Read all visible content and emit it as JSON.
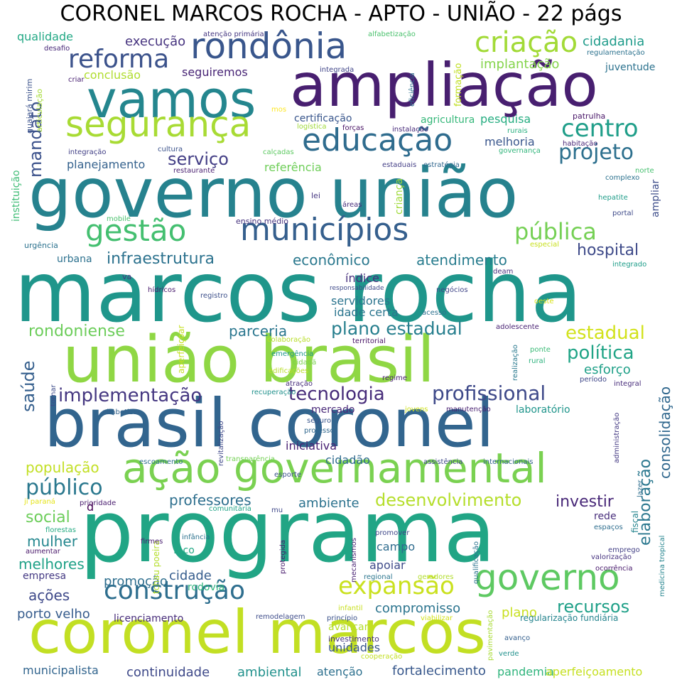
{
  "title": "CORONEL MARCOS ROCHA - APTO - UNIÃO - 22 págs",
  "words": [
    {
      "text": "programa",
      "color": "#21a585"
    },
    {
      "text": "marcos rocha",
      "color": "#1f968b"
    },
    {
      "text": "brasil coronel",
      "color": "#32658e"
    },
    {
      "text": "coronel marcos",
      "color": "#c2df23"
    },
    {
      "text": "governo união",
      "color": "#26828e"
    },
    {
      "text": "união brasil",
      "color": "#8fd744"
    },
    {
      "text": "ampliação",
      "color": "#481f70"
    },
    {
      "text": "vamos",
      "color": "#24868e"
    },
    {
      "text": "ação governamental",
      "color": "#7ad151"
    },
    {
      "text": "segurança",
      "color": "#a8db34"
    },
    {
      "text": "rondônia",
      "color": "#39568c"
    },
    {
      "text": "municípios",
      "color": "#355f8d"
    },
    {
      "text": "educação",
      "color": "#2f6c8e"
    },
    {
      "text": "governo",
      "color": "#5ec962"
    },
    {
      "text": "construção",
      "color": "#2e6e8e"
    },
    {
      "text": "expansão",
      "color": "#cae11f"
    },
    {
      "text": "gestão",
      "color": "#44bf70"
    },
    {
      "text": "criação",
      "color": "#a2da37"
    },
    {
      "text": "reforma",
      "color": "#3b528b"
    },
    {
      "text": "centro",
      "color": "#1f9e89"
    },
    {
      "text": "projeto",
      "color": "#2d708e"
    },
    {
      "text": "pública",
      "color": "#75d054"
    },
    {
      "text": "público",
      "color": "#2a788e"
    },
    {
      "text": "profissional",
      "color": "#3e4989"
    },
    {
      "text": "implementação",
      "color": "#453781"
    },
    {
      "text": "tecnologia",
      "color": "#472c7a"
    },
    {
      "text": "desenvolvimento",
      "color": "#b5de2b"
    },
    {
      "text": "infraestrutura",
      "color": "#2c728e"
    },
    {
      "text": "plano estadual",
      "color": "#277f8e"
    },
    {
      "text": "estadual",
      "color": "#d2e21b"
    },
    {
      "text": "política",
      "color": "#20a486"
    },
    {
      "text": "hospital",
      "color": "#3e4a89"
    },
    {
      "text": "rondoniense",
      "color": "#6ccd5a"
    },
    {
      "text": "recursos",
      "color": "#1fa088"
    },
    {
      "text": "mandato",
      "color": "#3b518b"
    },
    {
      "text": "saúde",
      "color": "#355f8d"
    },
    {
      "text": "serviço",
      "color": "#433e85"
    },
    {
      "text": "parceria",
      "color": "#2a768e"
    },
    {
      "text": "econômico",
      "color": "#2a788e"
    },
    {
      "text": "atendimento",
      "color": "#287c8e"
    },
    {
      "text": "população",
      "color": "#c2df23"
    },
    {
      "text": "social",
      "color": "#6ccd5a"
    },
    {
      "text": "mulher",
      "color": "#24878e"
    },
    {
      "text": "melhores",
      "color": "#1fa187"
    },
    {
      "text": "professores",
      "color": "#2e6f8e"
    },
    {
      "text": "ambiente",
      "color": "#2c728e"
    },
    {
      "text": "investir",
      "color": "#482878"
    },
    {
      "text": "elaboração",
      "color": "#2a778e"
    },
    {
      "text": "consolidação",
      "color": "#31688e"
    },
    {
      "text": "ações",
      "color": "#3e4989"
    },
    {
      "text": "promoção",
      "color": "#2e6e8e"
    },
    {
      "text": "cidade",
      "color": "#365d8d"
    },
    {
      "text": "porto velho",
      "color": "#365c8d"
    },
    {
      "text": "compromisso",
      "color": "#2b748e"
    },
    {
      "text": "plano",
      "color": "#c8e020"
    },
    {
      "text": "continuidade",
      "color": "#3e4989"
    },
    {
      "text": "ambiental",
      "color": "#21918c"
    },
    {
      "text": "fortalecimento",
      "color": "#38588c"
    },
    {
      "text": "esforço",
      "color": "#1fa088"
    },
    {
      "text": "execução",
      "color": "#46337f"
    },
    {
      "text": "implantação",
      "color": "#84d44b"
    },
    {
      "text": "cidadania",
      "color": "#1e9b8a"
    },
    {
      "text": "melhoria",
      "color": "#39568c"
    },
    {
      "text": "pesquisa",
      "color": "#26ad81"
    },
    {
      "text": "conclusão",
      "color": "#b0dd2f"
    },
    {
      "text": "qualidade",
      "color": "#22a884"
    },
    {
      "text": "seguiremos",
      "color": "#482576"
    },
    {
      "text": "planejamento",
      "color": "#34618d"
    },
    {
      "text": "referência",
      "color": "#6ece58"
    },
    {
      "text": "índice",
      "color": "#46307e"
    },
    {
      "text": "servidores",
      "color": "#2b748e"
    },
    {
      "text": "idade certa",
      "color": "#2b758e"
    },
    {
      "text": "campo",
      "color": "#2f6c8e"
    },
    {
      "text": "apoiar",
      "color": "#3e4a89"
    },
    {
      "text": "iniciativa",
      "color": "#482173"
    },
    {
      "text": "cidadão",
      "color": "#2f6b8e"
    },
    {
      "text": "unidades",
      "color": "#39568c"
    },
    {
      "text": "atenção",
      "color": "#2d708e"
    },
    {
      "text": "pandemia",
      "color": "#2fb47c"
    },
    {
      "text": "aperfeiçoamento",
      "color": "#c5e021"
    },
    {
      "text": "municipalista",
      "color": "#32658e"
    },
    {
      "text": "licenciamento",
      "color": "#472c7a"
    },
    {
      "text": "rodovia",
      "color": "#2eb37c"
    },
    {
      "text": "empresa",
      "color": "#443983"
    },
    {
      "text": "mercado",
      "color": "#482878"
    },
    {
      "text": "agricultura",
      "color": "#35b779"
    },
    {
      "text": "certificação",
      "color": "#39568c"
    },
    {
      "text": "juventude",
      "color": "#2c728e"
    },
    {
      "text": "rede",
      "color": "#472d7b"
    },
    {
      "text": "laboratório",
      "color": "#1f958b"
    },
    {
      "text": "regularização fundiária",
      "color": "#25848e"
    },
    {
      "text": "avançar",
      "color": "#b5de2b"
    },
    {
      "text": "investimento",
      "color": "#46327e"
    },
    {
      "text": "urbana",
      "color": "#2c718e"
    },
    {
      "text": "ensino médio",
      "color": "#46327e"
    },
    {
      "text": "ampliar",
      "color": "#3d4d8a"
    },
    {
      "text": "portal",
      "color": "#3e4a89"
    },
    {
      "text": "lei",
      "color": "#453781"
    },
    {
      "text": "áreas",
      "color": "#472d7b"
    },
    {
      "text": "criança",
      "color": "#9fda3a"
    },
    {
      "text": "formação",
      "color": "#c0df25"
    },
    {
      "text": "instituição",
      "color": "#3dbc74"
    },
    {
      "text": "guajará mirim",
      "color": "#3b528b"
    },
    {
      "text": "articulação",
      "color": "#a5db36"
    },
    {
      "text": "mos",
      "color": "#fde725"
    },
    {
      "text": "criar",
      "color": "#482071"
    },
    {
      "text": "integrada",
      "color": "#404588"
    },
    {
      "text": "eficiência",
      "color": "#2d708e"
    },
    {
      "text": "patrulha",
      "color": "#481668"
    },
    {
      "text": "logística",
      "color": "#a0da39"
    },
    {
      "text": "forças",
      "color": "#471063"
    },
    {
      "text": "instalação",
      "color": "#472a7a"
    },
    {
      "text": "rurais",
      "color": "#29af7f"
    },
    {
      "text": "integração",
      "color": "#424086"
    },
    {
      "text": "cultura",
      "color": "#3b528b"
    },
    {
      "text": "calçadas",
      "color": "#5ec962"
    },
    {
      "text": "estaduais",
      "color": "#433e85"
    },
    {
      "text": "estratégia",
      "color": "#31678e"
    },
    {
      "text": "governança",
      "color": "#31b57b"
    },
    {
      "text": "habitação",
      "color": "#482677"
    },
    {
      "text": "complexo",
      "color": "#2c728e"
    },
    {
      "text": "norte",
      "color": "#46c06f"
    },
    {
      "text": "hepatite",
      "color": "#1e9c89"
    },
    {
      "text": "restaurante",
      "color": "#481d6f"
    },
    {
      "text": "mobile",
      "color": "#4ac16d"
    },
    {
      "text": "urgência",
      "color": "#2c728e"
    },
    {
      "text": "especial",
      "color": "#c8e020"
    },
    {
      "text": "integrado",
      "color": "#1e9d89"
    },
    {
      "text": "va",
      "color": "#453581"
    },
    {
      "text": "deam",
      "color": "#472f7d"
    },
    {
      "text": "hídricos",
      "color": "#481b6d"
    },
    {
      "text": "registro",
      "color": "#3c4f8a"
    },
    {
      "text": "responsabilidade",
      "color": "#3e4989"
    },
    {
      "text": "negócios",
      "color": "#404688"
    },
    {
      "text": "acesso",
      "color": "#2c718e"
    },
    {
      "text": "oeste",
      "color": "#d8e219"
    },
    {
      "text": "adolescente",
      "color": "#482173"
    },
    {
      "text": "aperfeiçoar",
      "color": "#c5e021"
    },
    {
      "text": "colaboração",
      "color": "#b8de29"
    },
    {
      "text": "territorial",
      "color": "#471164"
    },
    {
      "text": "realização",
      "color": "#29798e"
    },
    {
      "text": "ponte",
      "color": "#3aba76"
    },
    {
      "text": "rural",
      "color": "#2db27d"
    },
    {
      "text": "emergência",
      "color": "#1f988b"
    },
    {
      "text": "cidadã",
      "color": "#7ad151"
    },
    {
      "text": "edificações",
      "color": "#b8de29"
    },
    {
      "text": "regime",
      "color": "#482071"
    },
    {
      "text": "período",
      "color": "#3f4788"
    },
    {
      "text": "integral",
      "color": "#472c7a"
    },
    {
      "text": "tornar",
      "color": "#3e4c8a"
    },
    {
      "text": "atração",
      "color": "#472d7b"
    },
    {
      "text": "recuperação",
      "color": "#21918c"
    },
    {
      "text": "alfabetizar",
      "color": "#33638d"
    },
    {
      "text": "jovens",
      "color": "#cde11d"
    },
    {
      "text": "manutenção",
      "color": "#481f70"
    },
    {
      "text": "administração",
      "color": "#443a83"
    },
    {
      "text": "revitalização",
      "color": "#3f4889"
    },
    {
      "text": "seguro",
      "color": "#39568c"
    },
    {
      "text": "professor",
      "color": "#31688e"
    },
    {
      "text": "escoamento",
      "color": "#2d708e"
    },
    {
      "text": "transparência",
      "color": "#74d055"
    },
    {
      "text": "assistência",
      "color": "#3e4989"
    },
    {
      "text": "internacionais",
      "color": "#33638d"
    },
    {
      "text": "lazer",
      "color": "#2e6e8e"
    },
    {
      "text": "esporte",
      "color": "#3b528b"
    },
    {
      "text": "ji paraná",
      "color": "#e5e419"
    },
    {
      "text": "prioridade",
      "color": "#481c6e"
    },
    {
      "text": "florestas",
      "color": "#25ab82"
    },
    {
      "text": "comunitária",
      "color": "#20a386"
    },
    {
      "text": "mu",
      "color": "#3f4889"
    },
    {
      "text": "d",
      "color": "#440154"
    },
    {
      "text": "tchau poeira",
      "color": "#b5de2b"
    },
    {
      "text": "infância",
      "color": "#2c728e"
    },
    {
      "text": "firmes",
      "color": "#481d6f"
    },
    {
      "text": "foco",
      "color": "#22a884"
    },
    {
      "text": "protegida",
      "color": "#481a6c"
    },
    {
      "text": "mecanismos",
      "color": "#482173"
    },
    {
      "text": "promover",
      "color": "#3f4788"
    },
    {
      "text": "qualificação",
      "color": "#2c738e"
    },
    {
      "text": "fiscal",
      "color": "#25858e"
    },
    {
      "text": "espaços",
      "color": "#2e6e8e"
    },
    {
      "text": "emprego",
      "color": "#423f85"
    },
    {
      "text": "valorização",
      "color": "#46337f"
    },
    {
      "text": "ocorrência",
      "color": "#481a6c"
    },
    {
      "text": "medicina tropical",
      "color": "#25848e"
    },
    {
      "text": "aumentar",
      "color": "#481769"
    },
    {
      "text": "regional",
      "color": "#2b758e"
    },
    {
      "text": "geradores",
      "color": "#b2dd2d"
    },
    {
      "text": "desafio",
      "color": "#482878"
    },
    {
      "text": "atenção primária",
      "color": "#453781"
    },
    {
      "text": "alfabetização",
      "color": "#4ac16d"
    },
    {
      "text": "regulamentação",
      "color": "#2c728e"
    },
    {
      "text": "infantil",
      "color": "#c8e020"
    },
    {
      "text": "princípio",
      "color": "#3b528b"
    },
    {
      "text": "viabilizar",
      "color": "#d2e21b"
    },
    {
      "text": "remodelagem",
      "color": "#3e4c8a"
    },
    {
      "text": "pavimentação",
      "color": "#a8db34"
    },
    {
      "text": "avanço",
      "color": "#35608d"
    },
    {
      "text": "verde",
      "color": "#21918c"
    },
    {
      "text": "cooperação",
      "color": "#c2df23"
    }
  ]
}
